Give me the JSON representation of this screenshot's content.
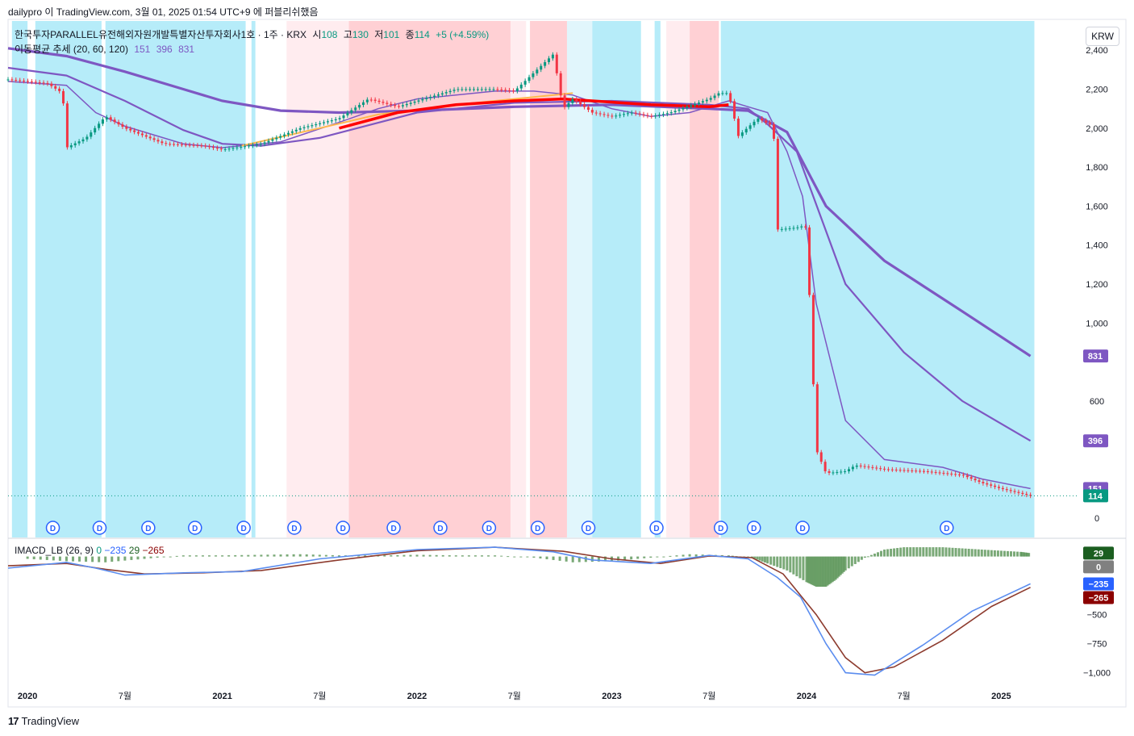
{
  "header": {
    "published_by": "dailypro 이 TradingView.com, 3월 01, 2025 01:54 UTC+9 에 퍼블리쉬했음"
  },
  "legend": {
    "symbol": "한국투자PARALLEL유전해외자원개발특별자산투자회사1호 · 1주 · KRX",
    "open_label": "시",
    "open": "108",
    "high_label": "고",
    "high": "130",
    "low_label": "저",
    "low": "101",
    "close_label": "종",
    "close": "114",
    "change": "+5 (+4.59%)",
    "ma_title": "이동평균 추세 (20, 60, 120)",
    "ma20": "151",
    "ma60": "396",
    "ma120": "831"
  },
  "macd_legend": {
    "title": "IMACD_LB (26, 9)",
    "v0": "0",
    "v1": "−235",
    "v2": "29",
    "v3": "−265"
  },
  "currency": "KRW",
  "footer": {
    "brand": "TradingView",
    "mark": "17"
  },
  "colors": {
    "up": "#089981",
    "down": "#f23645",
    "ma_purple": "#7e57c2",
    "bg_blue": "#b2ebf9",
    "bg_red": "#ffcdd2",
    "bg_lightred": "#ffebee",
    "macd_line": "#5b8def",
    "signal_line": "#8d3b2e",
    "hist_green": "#4e8c4a"
  },
  "chart_data": [
    {
      "type": "line",
      "panel": "price",
      "title": "",
      "ylim": [
        -100,
        2550
      ],
      "yticks": [
        0,
        600,
        800,
        1000,
        1200,
        1400,
        1600,
        1800,
        2000,
        2200,
        2400
      ],
      "ytick_labels": [
        "0",
        "600",
        "",
        "1,000",
        "1,200",
        "1,400",
        "1,600",
        "1,800",
        "2,000",
        "2,200",
        "2,400"
      ],
      "x_tick_labels": [
        "2020",
        "7월",
        "2021",
        "7월",
        "2022",
        "7월",
        "2023",
        "7월",
        "2024",
        "7월",
        "2025"
      ],
      "x_tick_positions": [
        2020.0,
        2020.5,
        2021.0,
        2021.5,
        2022.0,
        2022.5,
        2023.0,
        2023.5,
        2024.0,
        2024.5,
        2025.0
      ],
      "xlim": [
        2019.9,
        2025.4
      ],
      "series": [
        {
          "id": "price",
          "x": [
            2019.9,
            2020.1,
            2020.18,
            2020.2,
            2020.3,
            2020.4,
            2020.5,
            2020.7,
            2020.9,
            2021.0,
            2021.2,
            2021.4,
            2021.6,
            2021.75,
            2021.9,
            2022.0,
            2022.2,
            2022.4,
            2022.5,
            2022.7,
            2022.75,
            2022.8,
            2022.9,
            2023.0,
            2023.1,
            2023.2,
            2023.3,
            2023.5,
            2023.55,
            2023.6,
            2023.65,
            2023.75,
            2023.83,
            2023.85,
            2023.95,
            2023.99,
            2024.0,
            2024.05,
            2024.1,
            2024.2,
            2024.25,
            2024.4,
            2024.6,
            2024.8,
            2024.9,
            2025.0,
            2025.15
          ],
          "y": [
            2250,
            2230,
            2180,
            1900,
            1950,
            2060,
            2000,
            1920,
            1910,
            1890,
            1920,
            2000,
            2050,
            2150,
            2110,
            2140,
            2200,
            2200,
            2190,
            2380,
            2100,
            2150,
            2080,
            2060,
            2080,
            2060,
            2080,
            2150,
            2180,
            2180,
            1960,
            2050,
            2010,
            1480,
            1490,
            1500,
            1480,
            350,
            230,
            240,
            270,
            250,
            240,
            220,
            180,
            150,
            114
          ]
        },
        {
          "id": "ma20",
          "x": [
            2019.9,
            2020.2,
            2020.35,
            2020.5,
            2020.8,
            2021.0,
            2021.3,
            2021.6,
            2021.8,
            2022.0,
            2022.4,
            2022.6,
            2022.8,
            2023.0,
            2023.2,
            2023.4,
            2023.6,
            2023.7,
            2023.8,
            2023.9,
            2023.98,
            2024.05,
            2024.2,
            2024.4,
            2024.7,
            2024.9,
            2025.15
          ],
          "y": [
            2240,
            2220,
            2080,
            2010,
            1920,
            1900,
            1930,
            2030,
            2100,
            2150,
            2190,
            2190,
            2170,
            2100,
            2060,
            2080,
            2140,
            2110,
            2080,
            1880,
            1650,
            1100,
            500,
            300,
            260,
            200,
            151
          ]
        },
        {
          "id": "ma60",
          "x": [
            2019.9,
            2020.2,
            2020.5,
            2020.8,
            2021.0,
            2021.2,
            2021.5,
            2022.0,
            2022.5,
            2023.0,
            2023.5,
            2023.7,
            2023.8,
            2023.95,
            2024.2,
            2024.5,
            2024.8,
            2025.15
          ],
          "y": [
            2310,
            2270,
            2140,
            1990,
            1920,
            1910,
            1950,
            2080,
            2130,
            2140,
            2120,
            2100,
            2020,
            1880,
            1200,
            850,
            600,
            396
          ]
        },
        {
          "id": "ma120",
          "x": [
            2019.9,
            2020.2,
            2020.5,
            2020.8,
            2021.0,
            2021.3,
            2021.6,
            2022.0,
            2022.5,
            2023.0,
            2023.5,
            2023.7,
            2023.9,
            2024.1,
            2024.4,
            2024.8,
            2025.15
          ],
          "y": [
            2410,
            2370,
            2290,
            2200,
            2140,
            2090,
            2080,
            2090,
            2110,
            2120,
            2100,
            2090,
            1980,
            1600,
            1320,
            1060,
            831
          ]
        },
        {
          "id": "trend_orange",
          "x": [
            2021.1,
            2021.5,
            2021.8,
            2022.2,
            2022.6,
            2022.8
          ],
          "y": [
            1910,
            2000,
            2070,
            2120,
            2160,
            2180
          ]
        },
        {
          "id": "trend_red",
          "x": [
            2021.6,
            2021.9,
            2022.2,
            2022.5,
            2022.75,
            2023.2,
            2023.5,
            2023.6
          ],
          "y": [
            2000,
            2080,
            2120,
            2140,
            2150,
            2120,
            2110,
            2120
          ]
        }
      ],
      "last_price_line": 114,
      "value_badges": [
        {
          "value": 831,
          "label": "831",
          "color": "#7e57c2"
        },
        {
          "value": 396,
          "label": "396",
          "color": "#7e57c2"
        },
        {
          "value": 151,
          "label": "151",
          "color": "#7e57c2"
        },
        {
          "value": 114,
          "label": "114",
          "color": "#089981"
        }
      ],
      "background_zones": [
        {
          "from": 2019.92,
          "to": 2020.0,
          "kind": "blue"
        },
        {
          "from": 2020.04,
          "to": 2020.38,
          "kind": "blue"
        },
        {
          "from": 2020.4,
          "to": 2021.12,
          "kind": "blue"
        },
        {
          "from": 2021.15,
          "to": 2021.17,
          "kind": "blue"
        },
        {
          "from": 2021.33,
          "to": 2021.65,
          "kind": "lightred"
        },
        {
          "from": 2021.65,
          "to": 2022.48,
          "kind": "red"
        },
        {
          "from": 2022.48,
          "to": 2022.56,
          "kind": "lightred"
        },
        {
          "from": 2022.58,
          "to": 2022.77,
          "kind": "red"
        },
        {
          "from": 2022.77,
          "to": 2022.9,
          "kind": "lightblue"
        },
        {
          "from": 2022.9,
          "to": 2023.15,
          "kind": "blue"
        },
        {
          "from": 2023.22,
          "to": 2023.25,
          "kind": "blue"
        },
        {
          "from": 2023.28,
          "to": 2023.4,
          "kind": "lightred"
        },
        {
          "from": 2023.4,
          "to": 2023.55,
          "kind": "red"
        },
        {
          "from": 2023.56,
          "to": 2025.17,
          "kind": "blue"
        }
      ],
      "dividend_markers_x": [
        2020.13,
        2020.37,
        2020.62,
        2020.86,
        2021.11,
        2021.37,
        2021.62,
        2021.88,
        2022.12,
        2022.37,
        2022.62,
        2022.88,
        2023.23,
        2023.56,
        2023.73,
        2023.98,
        2024.72
      ],
      "dividend_label": "D"
    },
    {
      "type": "line",
      "panel": "IMACD_LB",
      "title": "",
      "ylim": [
        -1100,
        150
      ],
      "yticks": [
        0,
        -500,
        -750,
        -1000
      ],
      "ytick_labels": [
        "0",
        "−500",
        "−750",
        "−1,000"
      ],
      "series": [
        {
          "id": "macd",
          "x": [
            2019.9,
            2020.2,
            2020.35,
            2020.5,
            2020.8,
            2021.1,
            2021.5,
            2022.0,
            2022.4,
            2022.7,
            2022.9,
            2023.2,
            2023.5,
            2023.7,
            2023.85,
            2023.97,
            2024.1,
            2024.2,
            2024.35,
            2024.6,
            2024.85,
            2025.15
          ],
          "y": [
            -100,
            -50,
            -100,
            -160,
            -140,
            -130,
            -20,
            60,
            80,
            40,
            -30,
            -60,
            10,
            -20,
            -180,
            -350,
            -750,
            -1000,
            -1020,
            -760,
            -470,
            -235
          ]
        },
        {
          "id": "signal",
          "x": [
            2019.9,
            2020.2,
            2020.4,
            2020.6,
            2020.9,
            2021.2,
            2021.6,
            2022.0,
            2022.4,
            2022.75,
            2023.0,
            2023.25,
            2023.5,
            2023.72,
            2023.88,
            2024.05,
            2024.2,
            2024.3,
            2024.45,
            2024.7,
            2024.95,
            2025.15
          ],
          "y": [
            -80,
            -60,
            -110,
            -150,
            -140,
            -120,
            -30,
            50,
            80,
            45,
            -20,
            -60,
            5,
            -10,
            -150,
            -500,
            -870,
            -1000,
            -950,
            -720,
            -430,
            -265
          ]
        }
      ],
      "histogram_note": "green bars along zero line; deep negative near early 2024, positive from mid-2024",
      "histogram": {
        "x": [
          2020.0,
          2020.2,
          2020.4,
          2020.6,
          2020.8,
          2021.0,
          2021.2,
          2021.4,
          2021.6,
          2021.8,
          2022.0,
          2022.2,
          2022.4,
          2022.6,
          2022.8,
          2023.0,
          2023.2,
          2023.4,
          2023.6,
          2023.72,
          2023.8,
          2023.9,
          2024.0,
          2024.05,
          2024.1,
          2024.15,
          2024.2,
          2024.3,
          2024.4,
          2024.5,
          2024.6,
          2024.7,
          2024.8,
          2024.9,
          2025.0,
          2025.1,
          2025.15
        ],
        "y": [
          -20,
          -40,
          -50,
          -20,
          10,
          10,
          15,
          20,
          10,
          10,
          15,
          10,
          10,
          -10,
          -50,
          -40,
          -10,
          20,
          10,
          -10,
          -60,
          -120,
          -220,
          -260,
          -260,
          -200,
          -120,
          -10,
          60,
          80,
          80,
          80,
          70,
          60,
          50,
          40,
          29
        ]
      },
      "value_badges": [
        {
          "value": 29,
          "label": "29",
          "color": "#1b5e20"
        },
        {
          "value": 0,
          "label": "0",
          "color": "#808080"
        },
        {
          "value": -235,
          "label": "−235",
          "color": "#2962ff"
        },
        {
          "value": -265,
          "label": "−265",
          "color": "#8b0000"
        }
      ]
    }
  ]
}
